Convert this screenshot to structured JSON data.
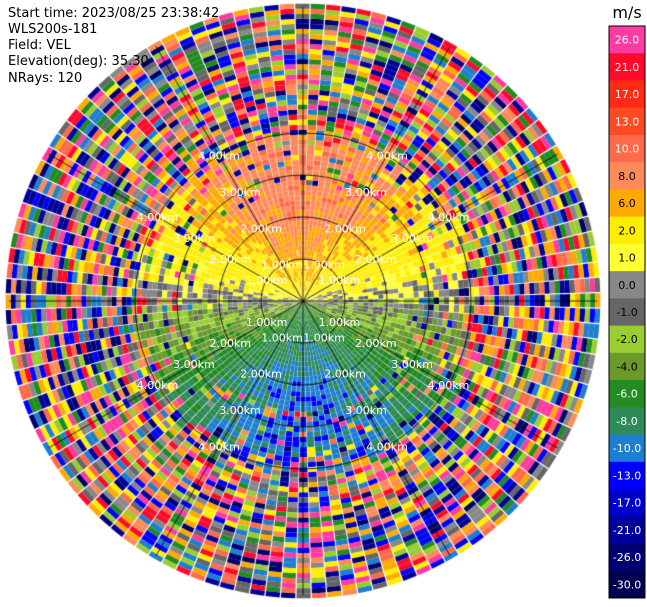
{
  "header": {
    "start_time": "Start time: 2023/08/25 23:38:42",
    "instrument": "WLS200s-181",
    "field": "Field: VEL",
    "elevation": "Elevation(deg): 35.30",
    "nrays": "NRays: 120"
  },
  "chart_data": {
    "type": "heatmap",
    "projection": "polar-ppi",
    "rays": 120,
    "range_rings_km": [
      1.0,
      2.0,
      3.0,
      4.0
    ],
    "ring_labels": [
      "1.00km",
      "2.00km",
      "3.00km",
      "4.00km"
    ],
    "max_range_km": 7.0,
    "colorbar": {
      "unit": "m/s",
      "ticks": [
        "26.0",
        "21.0",
        "17.0",
        "13.0",
        "10.0",
        "8.0",
        "6.0",
        "2.0",
        "1.0",
        "0.0",
        "-1.0",
        "-2.0",
        "-4.0",
        "-6.0",
        "-8.0",
        "-10.0",
        "-13.0",
        "-17.0",
        "-21.0",
        "-26.0",
        "-30.0"
      ],
      "colors": [
        "#ff3aa0",
        "#ff0a2a",
        "#ff2a14",
        "#ff4a22",
        "#ff6a4a",
        "#ff8a5a",
        "#ffaa00",
        "#ffee00",
        "#ffff33",
        "#888888",
        "#666666",
        "#9acd32",
        "#6b9a2a",
        "#228b22",
        "#2e8b57",
        "#1e7fd0",
        "#0000ff",
        "#0000cc",
        "#00009a",
        "#000070",
        "#000050"
      ]
    },
    "velocity_pattern": {
      "north_sector": "positive (6 to 13 m/s)",
      "south_sector": "negative (-4 to -10 m/s)",
      "east_west": "near zero",
      "outer_ranges": "noise beyond 3.5 km"
    }
  }
}
